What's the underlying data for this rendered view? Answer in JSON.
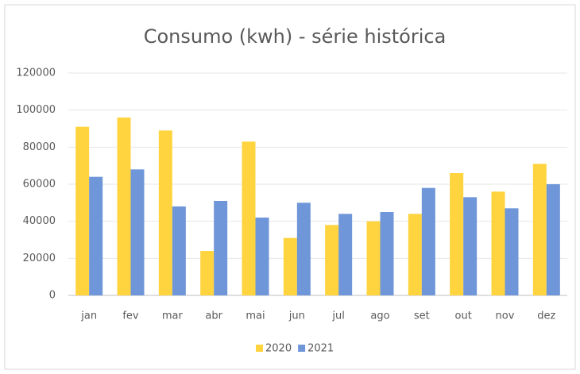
{
  "chart_data": {
    "type": "bar",
    "title": "Consumo (kwh) - série histórica",
    "categories": [
      "jan",
      "fev",
      "mar",
      "abr",
      "mai",
      "jun",
      "jul",
      "ago",
      "set",
      "out",
      "nov",
      "dez"
    ],
    "series": [
      {
        "name": "2020",
        "color": "#ffd43f",
        "values": [
          91000,
          96000,
          89000,
          24000,
          83000,
          31000,
          38000,
          40000,
          44000,
          66000,
          56000,
          71000
        ]
      },
      {
        "name": "2021",
        "color": "#6f96d8",
        "values": [
          64000,
          68000,
          48000,
          51000,
          42000,
          50000,
          44000,
          45000,
          58000,
          53000,
          47000,
          60000
        ]
      }
    ],
    "ylim": [
      0,
      120000
    ],
    "yticks": [
      0,
      20000,
      40000,
      60000,
      80000,
      100000,
      120000
    ],
    "grid": true,
    "legend": "bottom"
  }
}
